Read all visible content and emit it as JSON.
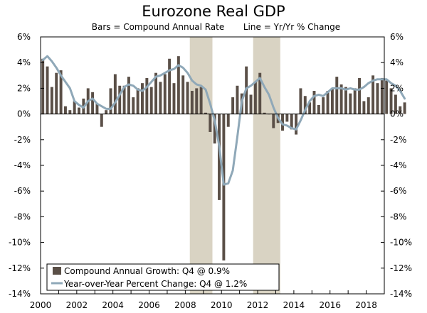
{
  "chart_data": {
    "type": "bar",
    "title": "Eurozone Real GDP",
    "subtitle_left": "Bars = Compound Annual Rate",
    "subtitle_right": "Line = Yr/Yr % Change",
    "x_start_year": 2000,
    "x_end_year": 2019,
    "x_tick_labels": [
      "2000",
      "2002",
      "2004",
      "2006",
      "2008",
      "2010",
      "2012",
      "2014",
      "2016",
      "2018"
    ],
    "y_left_tick_labels": [
      "6%",
      "4%",
      "2%",
      "0%",
      "-2%",
      "-4%",
      "-6%",
      "-8%",
      "-10%",
      "-12%",
      "-14%"
    ],
    "y_right_tick_labels": [
      "6%",
      "4%",
      "2%",
      "0%",
      "-2%",
      "-4%",
      "-6%",
      "-8%",
      "-10%",
      "-12%",
      "-14%"
    ],
    "ylim": [
      -14,
      6
    ],
    "recessions": [
      {
        "start": 2008.25,
        "end": 2009.5
      },
      {
        "start": 2011.75,
        "end": 2013.25
      }
    ],
    "series": [
      {
        "name": "Compound Annual Growth: Q4 @ 0.9%",
        "kind": "bar",
        "color": "#5a4f47",
        "start_year": 2000,
        "values": [
          4.3,
          3.7,
          2.1,
          3.2,
          3.4,
          0.6,
          0.3,
          1.0,
          0.5,
          1.2,
          2.0,
          1.7,
          0.8,
          -1.0,
          0.3,
          2.0,
          3.1,
          2.2,
          2.2,
          2.9,
          1.3,
          2.0,
          2.4,
          2.8,
          2.1,
          3.2,
          2.5,
          3.1,
          4.3,
          2.4,
          4.5,
          3.0,
          2.5,
          1.8,
          2.0,
          2.1,
          0.1,
          -1.4,
          -2.3,
          -6.7,
          -11.4,
          -1.0,
          1.3,
          2.2,
          1.6,
          3.7,
          1.5,
          2.5,
          3.2,
          0.1,
          0.0,
          -1.1,
          -0.7,
          -1.3,
          -0.6,
          -1.2,
          -1.6,
          2.0,
          1.4,
          0.9,
          1.8,
          0.7,
          1.3,
          1.8,
          2.0,
          2.9,
          2.3,
          2.1,
          1.6,
          2.0,
          2.8,
          1.0,
          1.3,
          3.0,
          2.4,
          2.8,
          2.6,
          2.0,
          1.5,
          0.6,
          0.9
        ]
      },
      {
        "name": "Year-over-Year Percent Change: Q4 @ 1.2%",
        "kind": "line",
        "color": "#8fa8b8",
        "start_year": 2000,
        "values": [
          4.2,
          4.5,
          4.1,
          3.6,
          3.0,
          2.5,
          2.0,
          1.0,
          0.7,
          0.5,
          1.0,
          1.2,
          0.8,
          0.6,
          0.4,
          0.4,
          0.9,
          1.5,
          2.1,
          2.3,
          2.2,
          1.9,
          1.8,
          2.1,
          2.5,
          2.9,
          3.0,
          3.2,
          3.4,
          3.5,
          3.8,
          3.6,
          3.2,
          2.6,
          2.3,
          2.2,
          1.9,
          0.8,
          -0.5,
          -2.5,
          -5.5,
          -5.4,
          -4.4,
          -1.8,
          1.0,
          2.0,
          2.2,
          2.5,
          2.8,
          2.1,
          1.5,
          0.5,
          -0.3,
          -0.8,
          -0.9,
          -1.1,
          -1.2,
          -0.5,
          0.3,
          1.0,
          1.4,
          1.5,
          1.4,
          1.7,
          2.0,
          2.0,
          2.0,
          1.9,
          2.0,
          1.9,
          1.9,
          2.1,
          2.4,
          2.6,
          2.7,
          2.7,
          2.7,
          2.4,
          2.2,
          1.8,
          1.2
        ]
      }
    ],
    "legend_position": "bottom-left",
    "grid": false
  }
}
